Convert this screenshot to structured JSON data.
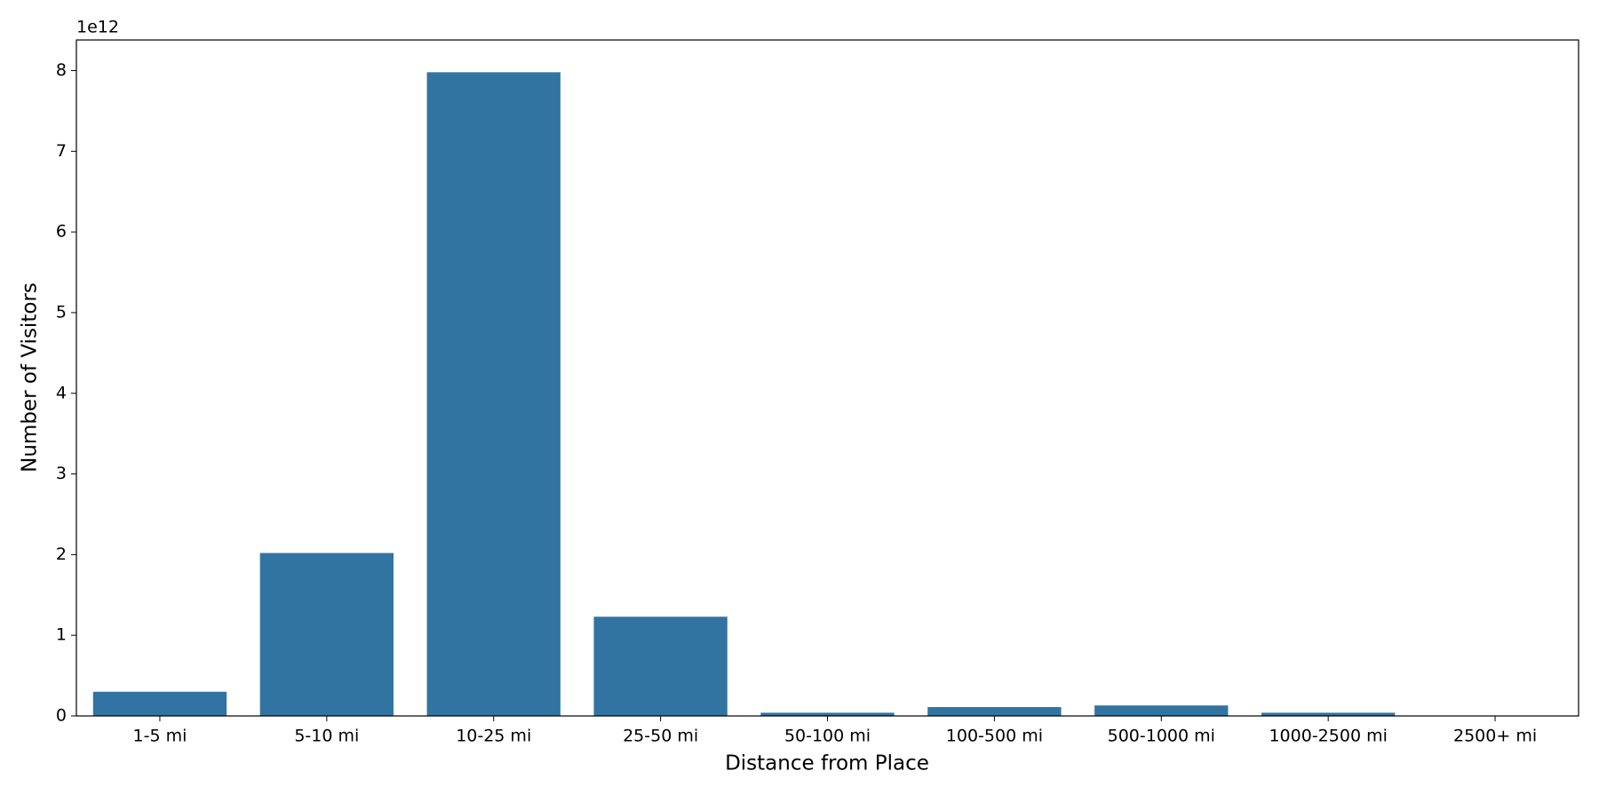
{
  "chart_data": {
    "type": "bar",
    "x_label": "Distance from Place",
    "y_label": "Number of Visitors",
    "y_offset_label": "1e12",
    "categories": [
      "1-5 mi",
      "5-10 mi",
      "10-25 mi",
      "25-50 mi",
      "50-100 mi",
      "100-500 mi",
      "500-1000 mi",
      "1000-2500 mi",
      "2500+ mi"
    ],
    "values": [
      0.3,
      2.02,
      7.98,
      1.23,
      0.04,
      0.11,
      0.13,
      0.04,
      0.0
    ],
    "color": "#3274a1",
    "ylim": [
      0,
      8.38
    ],
    "yticks": [
      0,
      1,
      2,
      3,
      4,
      5,
      6,
      7,
      8
    ],
    "grid": false
  }
}
